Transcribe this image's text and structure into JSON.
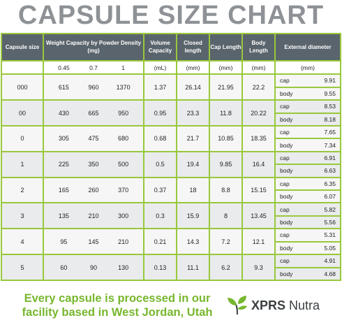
{
  "title": "CAPSULE SIZE CHART",
  "headers": {
    "capsule_size": "Capsule size",
    "weight_capacity": "Weight Capacity by Powder Density (mg)",
    "volume_capacity": "Volume Capacity",
    "closed_length": "Closed length",
    "cap_length": "Cap Length",
    "body_length": "Body Length",
    "external_diameter": "External diameter"
  },
  "units": {
    "densities": [
      "0.45",
      "0.7",
      "1"
    ],
    "volume": "(mL)",
    "closed": "(mm)",
    "cap": "(mm)",
    "body": "(mm)",
    "external": "(mm)"
  },
  "labels": {
    "cap": "cap",
    "body": "body"
  },
  "rows": [
    {
      "size": "000",
      "w045": "615",
      "w07": "960",
      "w1": "1370",
      "volume": "1.37",
      "closed": "26.14",
      "cap": "21.95",
      "body": "22.2",
      "ext_cap": "9.91",
      "ext_body": "9.55"
    },
    {
      "size": "00",
      "w045": "430",
      "w07": "665",
      "w1": "950",
      "volume": "0.95",
      "closed": "23.3",
      "cap": "11.8",
      "body": "20.22",
      "ext_cap": "8.53",
      "ext_body": "8.18"
    },
    {
      "size": "0",
      "w045": "305",
      "w07": "475",
      "w1": "680",
      "volume": "0.68",
      "closed": "21.7",
      "cap": "10.85",
      "body": "18.35",
      "ext_cap": "7.65",
      "ext_body": "7.34"
    },
    {
      "size": "1",
      "w045": "225",
      "w07": "350",
      "w1": "500",
      "volume": "0.5",
      "closed": "19.4",
      "cap": "9.85",
      "body": "16.4",
      "ext_cap": "6.91",
      "ext_body": "6.63"
    },
    {
      "size": "2",
      "w045": "165",
      "w07": "260",
      "w1": "370",
      "volume": "0.37",
      "closed": "18",
      "cap": "8.8",
      "body": "15.15",
      "ext_cap": "6.35",
      "ext_body": "6.07"
    },
    {
      "size": "3",
      "w045": "135",
      "w07": "210",
      "w1": "300",
      "volume": "0.3",
      "closed": "15.9",
      "cap": "8",
      "body": "13.45",
      "ext_cap": "5.82",
      "ext_body": "5.56"
    },
    {
      "size": "4",
      "w045": "95",
      "w07": "145",
      "w1": "210",
      "volume": "0.21",
      "closed": "14.3",
      "cap": "7.2",
      "body": "12.1",
      "ext_cap": "5.31",
      "ext_body": "5.05"
    },
    {
      "size": "5",
      "w045": "60",
      "w07": "90",
      "w1": "130",
      "volume": "0.13",
      "closed": "11.1",
      "cap": "6.2",
      "body": "9.3",
      "ext_cap": "4.91",
      "ext_body": "4.68"
    }
  ],
  "footer": {
    "tagline": "Every capsule is processed in our facility based in West Jordan, Utah",
    "brand_bold": "XPRS",
    "brand_rest": " Nutra"
  },
  "colors": {
    "accent_green": "#99c83c",
    "header_gray": "#5a646c",
    "title_gray": "#8e9296",
    "tagline_green": "#77b72e"
  },
  "icons": {
    "logo": "leaf-logo-icon"
  }
}
